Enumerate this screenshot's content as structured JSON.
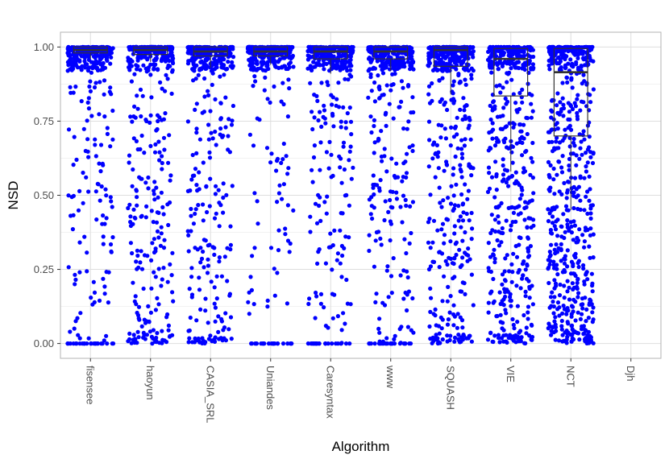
{
  "chart_data": {
    "type": "boxplot-with-jitter",
    "xlabel": "Algorithm",
    "ylabel": "NSD",
    "ylim": [
      -0.05,
      1.05
    ],
    "y_ticks": [
      0.0,
      0.25,
      0.5,
      0.75,
      1.0
    ],
    "y_tick_labels": [
      "0.00",
      "0.25",
      "0.50",
      "0.75",
      "1.00"
    ],
    "grid": true,
    "point_color": "#0000ff",
    "categories": [
      "fisensee",
      "haoyun",
      "CASIA_SRL",
      "Uniandes",
      "Caresyntax",
      "www",
      "SQUASH",
      "VIE",
      "NCT",
      "Djh"
    ],
    "boxes": [
      {
        "category": "fisensee",
        "min": 0.96,
        "q1": 0.98,
        "median": 0.99,
        "q3": 1.0,
        "max": 1.0
      },
      {
        "category": "haoyun",
        "min": 0.95,
        "q1": 0.975,
        "median": 0.99,
        "q3": 1.0,
        "max": 1.0
      },
      {
        "category": "CASIA_SRL",
        "min": 0.93,
        "q1": 0.97,
        "median": 0.985,
        "q3": 1.0,
        "max": 1.0
      },
      {
        "category": "Uniandes",
        "min": 0.94,
        "q1": 0.97,
        "median": 0.985,
        "q3": 1.0,
        "max": 1.0
      },
      {
        "category": "Caresyntax",
        "min": 0.91,
        "q1": 0.96,
        "median": 0.985,
        "q3": 1.0,
        "max": 1.0
      },
      {
        "category": "www",
        "min": 0.92,
        "q1": 0.96,
        "median": 0.985,
        "q3": 1.0,
        "max": 1.0
      },
      {
        "category": "SQUASH",
        "min": 0.84,
        "q1": 0.935,
        "median": 0.99,
        "q3": 1.0,
        "max": 1.0
      },
      {
        "category": "VIE",
        "min": 0.58,
        "q1": 0.835,
        "median": 0.96,
        "q3": 0.995,
        "max": 1.0
      },
      {
        "category": "NCT",
        "min": 0.45,
        "q1": 0.7,
        "median": 0.915,
        "q3": 0.995,
        "max": 1.0
      },
      {
        "category": "Djh",
        "min": null,
        "q1": null,
        "median": null,
        "q3": null,
        "max": null
      }
    ],
    "point_distribution": [
      {
        "category": "fisensee",
        "n_top": 220,
        "n_mid": 130,
        "n_zero": 25,
        "zero_spread": 0.0,
        "low_bias": 1.6
      },
      {
        "category": "haoyun",
        "n_top": 200,
        "n_mid": 190,
        "n_zero": 25,
        "zero_spread": 0.045,
        "low_bias": 1.0
      },
      {
        "category": "CASIA_SRL",
        "n_top": 200,
        "n_mid": 180,
        "n_zero": 25,
        "zero_spread": 0.02,
        "low_bias": 1.3
      },
      {
        "category": "Uniandes",
        "n_top": 220,
        "n_mid": 90,
        "n_zero": 25,
        "zero_spread": 0.0,
        "low_bias": 1.8
      },
      {
        "category": "Caresyntax",
        "n_top": 200,
        "n_mid": 150,
        "n_zero": 25,
        "zero_spread": 0.0,
        "low_bias": 1.4
      },
      {
        "category": "www",
        "n_top": 210,
        "n_mid": 180,
        "n_zero": 25,
        "zero_spread": 0.0,
        "low_bias": 1.4
      },
      {
        "category": "SQUASH",
        "n_top": 200,
        "n_mid": 260,
        "n_zero": 25,
        "zero_spread": 0.03,
        "low_bias": 1.1
      },
      {
        "category": "VIE",
        "n_top": 180,
        "n_mid": 320,
        "n_zero": 25,
        "zero_spread": 0.03,
        "low_bias": 0.9
      },
      {
        "category": "NCT",
        "n_top": 160,
        "n_mid": 420,
        "n_zero": 30,
        "zero_spread": 0.05,
        "low_bias": 0.8
      },
      {
        "category": "Djh",
        "n_top": 0,
        "n_mid": 0,
        "n_zero": 0,
        "zero_spread": 0.0,
        "low_bias": 1.0
      }
    ]
  }
}
